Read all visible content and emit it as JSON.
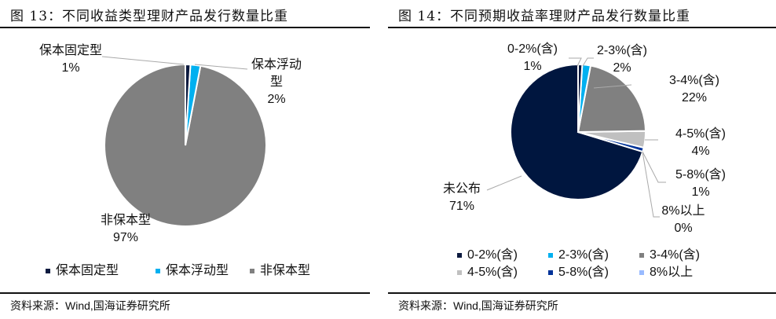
{
  "chart_data": [
    {
      "type": "pie",
      "title": "图 13：不同收益类型理财产品发行数量比重",
      "slices": [
        {
          "label": "保本固定型",
          "value": 1,
          "display": "1%",
          "color": "#0c1a3f"
        },
        {
          "label": "保本浮动型",
          "value": 2,
          "display": "2%",
          "color": "#00b0f0"
        },
        {
          "label": "非保本型",
          "value": 97,
          "display": "97%",
          "color": "#808080"
        }
      ],
      "legend": [
        "保本固定型",
        "保本浮动型",
        "非保本型"
      ],
      "legend_position": "bottom",
      "source": "资料来源：Wind,国海证券研究所"
    },
    {
      "type": "pie",
      "title": "图 14：不同预期收益率理财产品发行数量比重",
      "slices": [
        {
          "label": "0-2%(含)",
          "value": 1,
          "display": "1%",
          "color": "#0c1a3f"
        },
        {
          "label": "2-3%(含)",
          "value": 2,
          "display": "2%",
          "color": "#00b0f0"
        },
        {
          "label": "3-4%(含)",
          "value": 22,
          "display": "22%",
          "color": "#808080"
        },
        {
          "label": "4-5%(含)",
          "value": 4,
          "display": "4%",
          "color": "#c0c0c0"
        },
        {
          "label": "5-8%(含)",
          "value": 1,
          "display": "1%",
          "color": "#003399"
        },
        {
          "label": "8%以上",
          "value": 0,
          "display": "0%",
          "color": "#99bbff"
        },
        {
          "label": "未公布",
          "value": 71,
          "display": "71%",
          "color": "#00163f"
        }
      ],
      "legend": [
        "0-2%(含)",
        "2-3%(含)",
        "3-4%(含)",
        "4-5%(含)",
        "5-8%(含)",
        "8%以上"
      ],
      "legend_position": "bottom",
      "source": "资料来源：Wind,国海证券研究所"
    }
  ]
}
